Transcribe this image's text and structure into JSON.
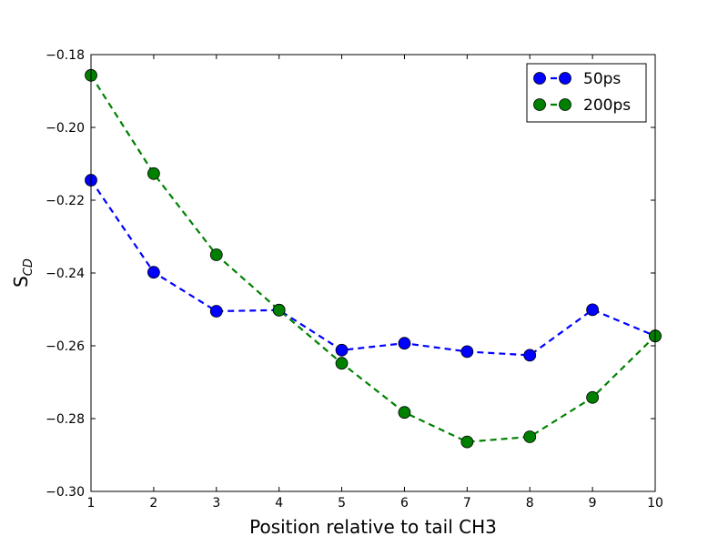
{
  "chart_data": {
    "type": "line",
    "xlabel": "Position relative to tail CH3",
    "ylabel_main": "S",
    "ylabel_sub": "CD",
    "x": [
      1,
      2,
      3,
      4,
      5,
      6,
      7,
      8,
      9,
      10
    ],
    "xlim": [
      1,
      10
    ],
    "ylim": [
      -0.3,
      -0.18
    ],
    "x_ticks": [
      "1",
      "2",
      "3",
      "4",
      "5",
      "6",
      "7",
      "8",
      "9",
      "10"
    ],
    "y_tick_values": [
      -0.3,
      -0.28,
      -0.26,
      -0.24,
      -0.22,
      -0.2,
      -0.18
    ],
    "y_ticks": [
      "−0.30",
      "−0.28",
      "−0.26",
      "−0.24",
      "−0.22",
      "−0.20",
      "−0.18"
    ],
    "grid": false,
    "legend_position": "top-right",
    "series": [
      {
        "name": "50ps",
        "color": "#0000ff",
        "line_style": "dashed",
        "marker": "circle",
        "values": [
          -0.2145,
          -0.2398,
          -0.2505,
          -0.2502,
          -0.2612,
          -0.2593,
          -0.2616,
          -0.2626,
          -0.2501,
          -0.2573
        ]
      },
      {
        "name": "200ps",
        "color": "#008000",
        "line_style": "dashed",
        "marker": "circle",
        "values": [
          -0.1857,
          -0.2127,
          -0.235,
          -0.2502,
          -0.2648,
          -0.2783,
          -0.2864,
          -0.285,
          -0.2742,
          -0.2573
        ]
      }
    ]
  }
}
